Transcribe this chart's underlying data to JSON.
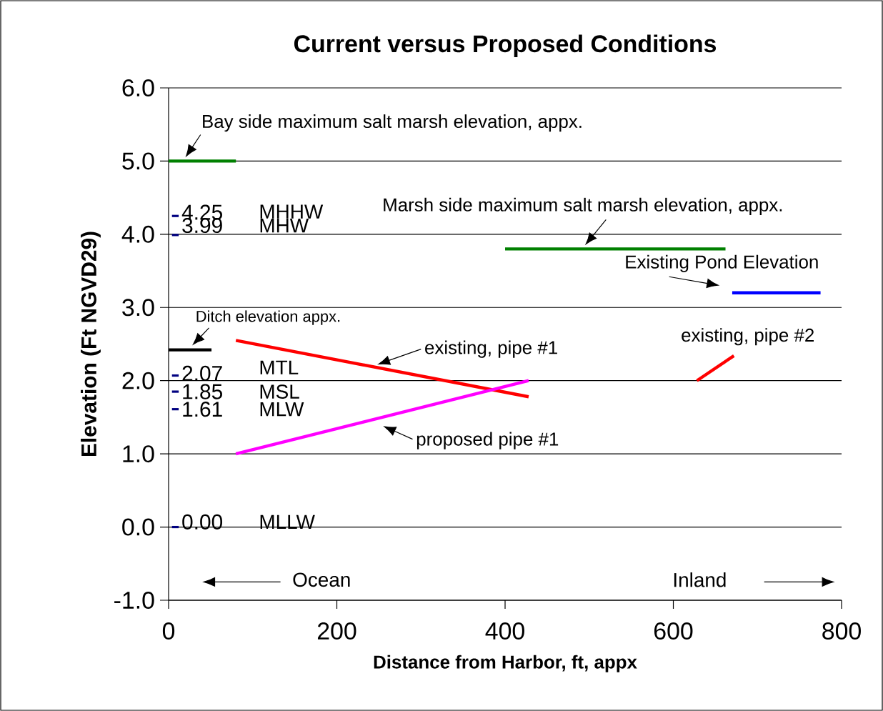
{
  "chart_data": {
    "type": "line",
    "title": "Current versus Proposed Conditions",
    "xlabel": "Distance from Harbor, ft, appx",
    "ylabel": "Elevation (Ft NGVD29)",
    "xlim": [
      0,
      800
    ],
    "xticks": [
      0,
      200,
      400,
      600,
      800
    ],
    "ylim": [
      -1,
      6
    ],
    "yticks": [
      {
        "value": -1,
        "label": "-1.0"
      },
      {
        "value": 0,
        "label": "0.0"
      },
      {
        "value": 1,
        "label": "1.0"
      },
      {
        "value": 2,
        "label": "2.0"
      },
      {
        "value": 3,
        "label": "3.0"
      },
      {
        "value": 4,
        "label": "4.0"
      },
      {
        "value": 5,
        "label": "5.0"
      },
      {
        "value": 6,
        "label": "6.0"
      }
    ],
    "grid": "y",
    "series": [
      {
        "color": "#008000",
        "x": [
          0,
          80
        ],
        "values": [
          5.0,
          5.0
        ]
      },
      {
        "color": "#008000",
        "x": [
          400,
          662
        ],
        "values": [
          3.8,
          3.8
        ]
      },
      {
        "color": "#0000ff",
        "x": [
          670,
          775
        ],
        "values": [
          3.2,
          3.2
        ]
      },
      {
        "color": "#000000",
        "x": [
          0,
          51
        ],
        "values": [
          2.42,
          2.42
        ]
      },
      {
        "color": "#ff0000",
        "x": [
          80,
          428
        ],
        "values": [
          2.55,
          1.78
        ]
      },
      {
        "color": "#ff00ff",
        "x": [
          80,
          428
        ],
        "values": [
          1.0,
          2.0
        ]
      },
      {
        "color": "#ff0000",
        "x": [
          628,
          672
        ],
        "values": [
          2.0,
          2.34
        ]
      },
      {
        "color": "#000080",
        "x": [
          4,
          12
        ],
        "values": [
          4.25,
          4.25
        ],
        "value_labels": [
          null,
          "4.25"
        ]
      },
      {
        "color": "#000080",
        "x": [
          4,
          12
        ],
        "values": [
          3.99,
          3.99
        ],
        "value_labels": [
          null,
          "3.99"
        ]
      },
      {
        "color": "#000080",
        "x": [
          4,
          12
        ],
        "values": [
          2.07,
          2.07
        ],
        "value_labels": [
          null,
          "2.07"
        ]
      },
      {
        "color": "#000080",
        "x": [
          4,
          12
        ],
        "values": [
          1.85,
          1.85
        ],
        "value_labels": [
          null,
          "1.85"
        ]
      },
      {
        "color": "#000080",
        "x": [
          4,
          12
        ],
        "values": [
          1.61,
          1.61
        ],
        "value_labels": [
          null,
          "1.61"
        ]
      },
      {
        "color": "#000080",
        "x": [
          4,
          12
        ],
        "values": [
          0.0,
          0.0
        ],
        "value_labels": [
          null,
          "0.00"
        ]
      }
    ],
    "annotations": [
      {
        "text": "Bay side maximum salt marsh elevation, appx.",
        "x": 20,
        "y": 5.0
      },
      {
        "text": "Marsh side maximum salt marsh elevation, appx.",
        "x": 495,
        "y": 3.8
      },
      {
        "text": "Existing Pond Elevation",
        "x": 670,
        "y": 3.2
      },
      {
        "text": "Ditch elevation appx.",
        "x": 28,
        "y": 2.42
      },
      {
        "text": "existing, pipe #1",
        "x": 248,
        "y": 2.17
      },
      {
        "text": "proposed pipe #1",
        "x": 255,
        "y": 1.5
      },
      {
        "text": "existing, pipe #2",
        "x": 672,
        "y": 2.34
      },
      "MHHW",
      "MHW",
      "MTL",
      "MSL",
      "MLW",
      "MLLW",
      "Ocean",
      "Inland"
    ]
  }
}
